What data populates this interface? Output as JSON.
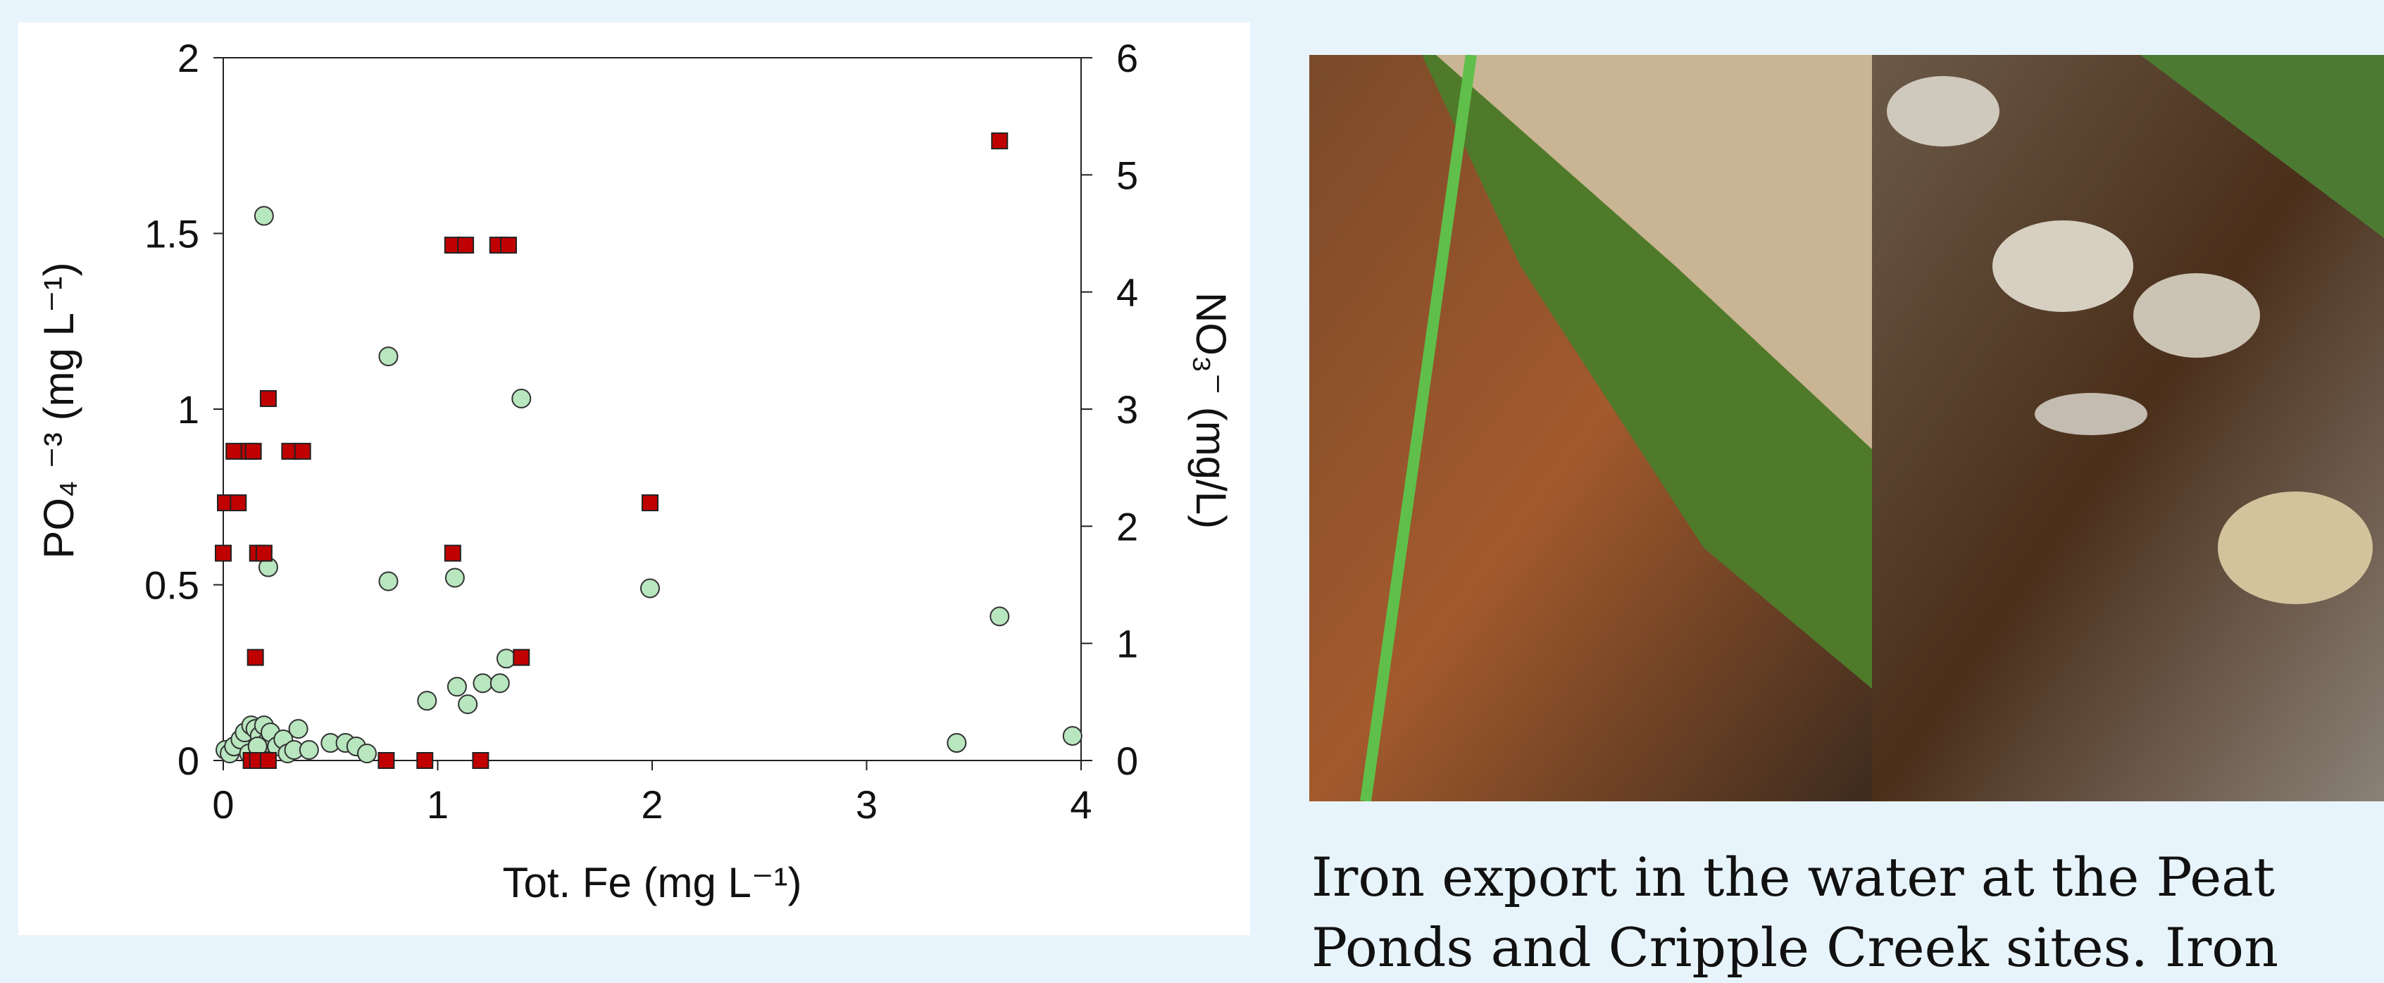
{
  "chart_data": {
    "type": "scatter",
    "xlabel": "Tot. Fe (mg L⁻¹)",
    "ylabel": "PO₄ ⁻³ (mg L⁻¹)",
    "y2label": "NO₃⁻ (mg/L)",
    "xlim": [
      0,
      4
    ],
    "xticks": [
      0,
      1,
      2,
      3,
      4
    ],
    "ylim": [
      0,
      2
    ],
    "yticks": [
      0,
      0.5,
      1,
      1.5,
      2
    ],
    "y2lim": [
      0,
      6
    ],
    "y2ticks": [
      0,
      1,
      2,
      3,
      4,
      5,
      6
    ],
    "series": [
      {
        "color": "#b8e6bf",
        "marker": "circle",
        "x": [
          0.19,
          0.77,
          1.39,
          0.21,
          0.77,
          1.08,
          1.99,
          3.62,
          0.95,
          1.09,
          1.14,
          1.21,
          1.29,
          1.32,
          3.42,
          3.96,
          0.01,
          0.03,
          0.05,
          0.08,
          0.1,
          0.13,
          0.15,
          0.17,
          0.19,
          0.2,
          0.22,
          0.25,
          0.28,
          0.3,
          0.33,
          0.35,
          0.4,
          0.5,
          0.57,
          0.62,
          0.67,
          0.12,
          0.16
        ],
        "values": [
          1.55,
          1.15,
          1.03,
          0.55,
          0.51,
          0.52,
          0.49,
          0.41,
          0.17,
          0.21,
          0.16,
          0.22,
          0.22,
          0.29,
          0.05,
          0.07,
          0.03,
          0.02,
          0.04,
          0.06,
          0.08,
          0.1,
          0.09,
          0.07,
          0.1,
          0.05,
          0.08,
          0.04,
          0.06,
          0.02,
          0.03,
          0.09,
          0.03,
          0.05,
          0.05,
          0.04,
          0.02,
          0.02,
          0.04
        ]
      },
      {
        "color": "#c00000",
        "marker": "square",
        "axis": "y2",
        "x": [
          0.0,
          0.01,
          0.07,
          0.05,
          0.12,
          0.14,
          0.16,
          0.19,
          0.21,
          0.15,
          0.31,
          0.37,
          0.13,
          0.16,
          0.21,
          0.76,
          0.94,
          1.2,
          1.07,
          1.07,
          1.13,
          1.28,
          1.33,
          1.39,
          1.99,
          3.62
        ],
        "values": [
          1.77,
          2.2,
          2.2,
          2.64,
          2.64,
          2.64,
          1.77,
          1.77,
          3.09,
          0.88,
          2.64,
          2.64,
          0,
          0,
          0,
          0,
          0,
          0,
          1.77,
          4.4,
          4.4,
          4.4,
          4.4,
          0.88,
          2.2,
          5.29
        ]
      }
    ]
  },
  "caption": "Iron export in the water at the Peat Ponds and Cripple Creek sites. Iron"
}
